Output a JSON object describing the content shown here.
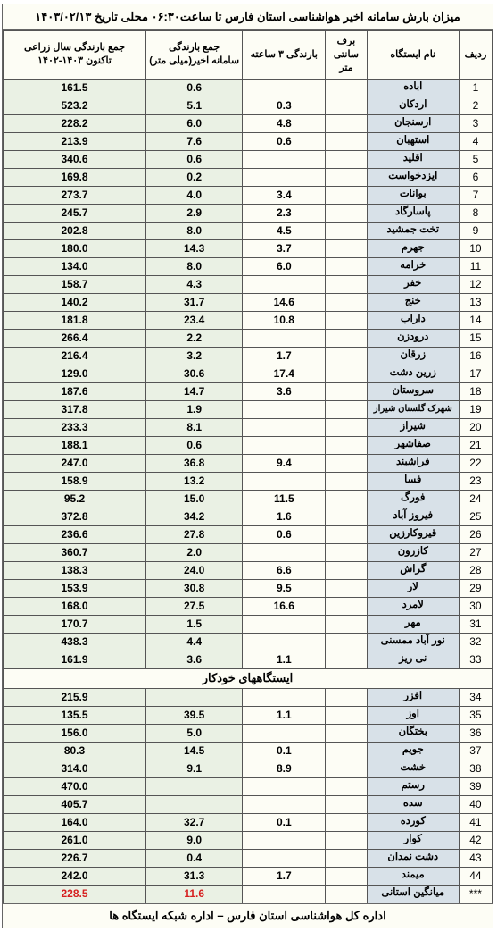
{
  "title": "میزان بارش سامانه اخیر هواشناسی استان فارس تا ساعت۰۶:۳۰ محلی تاریخ ۱۴۰۳/۰۲/۱۳",
  "footer": "اداره کل هواشناسی استان فارس  –  اداره شبکه ایستگاه ها",
  "headers": {
    "idx": "ردیف",
    "name": "نام ایستگاه",
    "snow": "برف\nسانتی متر",
    "r3": "بارندگی ۳ ساعته",
    "rlast": "جمع بارندگی\nسامانه اخیر(میلی متر)",
    "year": "جمع بارندگی سال زراعی\nتاکنون ۱۴۰۳-۱۴۰۲"
  },
  "section2_label": "ایستگاههای خودکار",
  "rows1": [
    {
      "i": "1",
      "n": "اباده",
      "s": "",
      "r3": "",
      "rl": "0.6",
      "y": "161.5"
    },
    {
      "i": "2",
      "n": "اردکان",
      "s": "",
      "r3": "0.3",
      "rl": "5.1",
      "y": "523.2"
    },
    {
      "i": "3",
      "n": "ارسنجان",
      "s": "",
      "r3": "4.8",
      "rl": "6.0",
      "y": "228.2"
    },
    {
      "i": "4",
      "n": "استهبان",
      "s": "",
      "r3": "0.6",
      "rl": "7.6",
      "y": "213.9"
    },
    {
      "i": "5",
      "n": "اقلید",
      "s": "",
      "r3": "",
      "rl": "0.6",
      "y": "340.6"
    },
    {
      "i": "6",
      "n": "ایزدخواست",
      "s": "",
      "r3": "",
      "rl": "0.2",
      "y": "169.8"
    },
    {
      "i": "7",
      "n": "بوانات",
      "s": "",
      "r3": "3.4",
      "rl": "4.0",
      "y": "273.7"
    },
    {
      "i": "8",
      "n": "پاسارگاد",
      "s": "",
      "r3": "2.3",
      "rl": "2.9",
      "y": "245.7"
    },
    {
      "i": "9",
      "n": "تخت جمشید",
      "s": "",
      "r3": "4.5",
      "rl": "8.0",
      "y": "202.8"
    },
    {
      "i": "10",
      "n": "جهرم",
      "s": "",
      "r3": "3.7",
      "rl": "14.3",
      "y": "180.0"
    },
    {
      "i": "11",
      "n": "خرامه",
      "s": "",
      "r3": "6.0",
      "rl": "8.0",
      "y": "134.0"
    },
    {
      "i": "12",
      "n": "خفر",
      "s": "",
      "r3": "",
      "rl": "4.3",
      "y": "158.7"
    },
    {
      "i": "13",
      "n": "خنج",
      "s": "",
      "r3": "14.6",
      "rl": "31.7",
      "y": "140.2"
    },
    {
      "i": "14",
      "n": "داراب",
      "s": "",
      "r3": "10.8",
      "rl": "23.4",
      "y": "181.8"
    },
    {
      "i": "15",
      "n": "درودزن",
      "s": "",
      "r3": "",
      "rl": "2.2",
      "y": "266.4"
    },
    {
      "i": "16",
      "n": "زرقان",
      "s": "",
      "r3": "1.7",
      "rl": "3.2",
      "y": "216.4"
    },
    {
      "i": "17",
      "n": "زرین دشت",
      "s": "",
      "r3": "17.4",
      "rl": "30.6",
      "y": "129.0"
    },
    {
      "i": "18",
      "n": "سروستان",
      "s": "",
      "r3": "3.6",
      "rl": "14.7",
      "y": "187.6"
    },
    {
      "i": "19",
      "n": "شهرک گلستان شیراز",
      "s": "",
      "r3": "",
      "rl": "1.9",
      "y": "317.8",
      "small": true
    },
    {
      "i": "20",
      "n": "شیراز",
      "s": "",
      "r3": "",
      "rl": "8.1",
      "y": "233.3"
    },
    {
      "i": "21",
      "n": "صفاشهر",
      "s": "",
      "r3": "",
      "rl": "0.6",
      "y": "188.1"
    },
    {
      "i": "22",
      "n": "فراشبند",
      "s": "",
      "r3": "9.4",
      "rl": "36.8",
      "y": "247.0"
    },
    {
      "i": "23",
      "n": "فسا",
      "s": "",
      "r3": "",
      "rl": "13.2",
      "y": "158.9"
    },
    {
      "i": "24",
      "n": "فورگ",
      "s": "",
      "r3": "11.5",
      "rl": "15.0",
      "y": "95.2"
    },
    {
      "i": "25",
      "n": "فیروز آباد",
      "s": "",
      "r3": "1.6",
      "rl": "34.2",
      "y": "372.8"
    },
    {
      "i": "26",
      "n": "قیروکارزین",
      "s": "",
      "r3": "0.6",
      "rl": "27.8",
      "y": "236.6"
    },
    {
      "i": "27",
      "n": "کازرون",
      "s": "",
      "r3": "",
      "rl": "2.0",
      "y": "360.7"
    },
    {
      "i": "28",
      "n": "گراش",
      "s": "",
      "r3": "6.6",
      "rl": "24.0",
      "y": "138.3"
    },
    {
      "i": "29",
      "n": "لار",
      "s": "",
      "r3": "9.5",
      "rl": "30.8",
      "y": "153.9"
    },
    {
      "i": "30",
      "n": "لامرد",
      "s": "",
      "r3": "16.6",
      "rl": "27.5",
      "y": "168.0"
    },
    {
      "i": "31",
      "n": "مهر",
      "s": "",
      "r3": "",
      "rl": "1.5",
      "y": "170.7"
    },
    {
      "i": "32",
      "n": "نور آباد ممسنی",
      "s": "",
      "r3": "",
      "rl": "4.4",
      "y": "438.3"
    },
    {
      "i": "33",
      "n": "نی ریز",
      "s": "",
      "r3": "1.1",
      "rl": "3.6",
      "y": "161.9"
    }
  ],
  "rows2": [
    {
      "i": "34",
      "n": "افزر",
      "s": "",
      "r3": "",
      "rl": "",
      "y": "215.9"
    },
    {
      "i": "35",
      "n": "اوز",
      "s": "",
      "r3": "1.1",
      "rl": "39.5",
      "y": "135.5"
    },
    {
      "i": "36",
      "n": "بختگان",
      "s": "",
      "r3": "",
      "rl": "5.0",
      "y": "156.0"
    },
    {
      "i": "37",
      "n": "جویم",
      "s": "",
      "r3": "0.1",
      "rl": "14.5",
      "y": "80.3"
    },
    {
      "i": "38",
      "n": "خشت",
      "s": "",
      "r3": "8.9",
      "rl": "9.1",
      "y": "314.0"
    },
    {
      "i": "39",
      "n": "رستم",
      "s": "",
      "r3": "",
      "rl": "",
      "y": "470.0"
    },
    {
      "i": "40",
      "n": "سده",
      "s": "",
      "r3": "",
      "rl": "",
      "y": "405.7"
    },
    {
      "i": "41",
      "n": "کورده",
      "s": "",
      "r3": "0.1",
      "rl": "32.7",
      "y": "164.0"
    },
    {
      "i": "42",
      "n": "کوار",
      "s": "",
      "r3": "",
      "rl": "9.0",
      "y": "261.0"
    },
    {
      "i": "43",
      "n": "دشت نمدان",
      "s": "",
      "r3": "",
      "rl": "0.4",
      "y": "226.7"
    },
    {
      "i": "44",
      "n": "میمند",
      "s": "",
      "r3": "1.7",
      "rl": "31.3",
      "y": "242.0"
    }
  ],
  "avg": {
    "i": "***",
    "n": "میانگین استانی",
    "s": "",
    "r3": "",
    "rl": "11.6",
    "y": "228.5"
  },
  "colors": {
    "name_bg": "#d8e1e8",
    "green_bg": "#eaf1e4",
    "plain_bg": "#fdfdf5",
    "border": "#555555",
    "red": "#d62020"
  }
}
